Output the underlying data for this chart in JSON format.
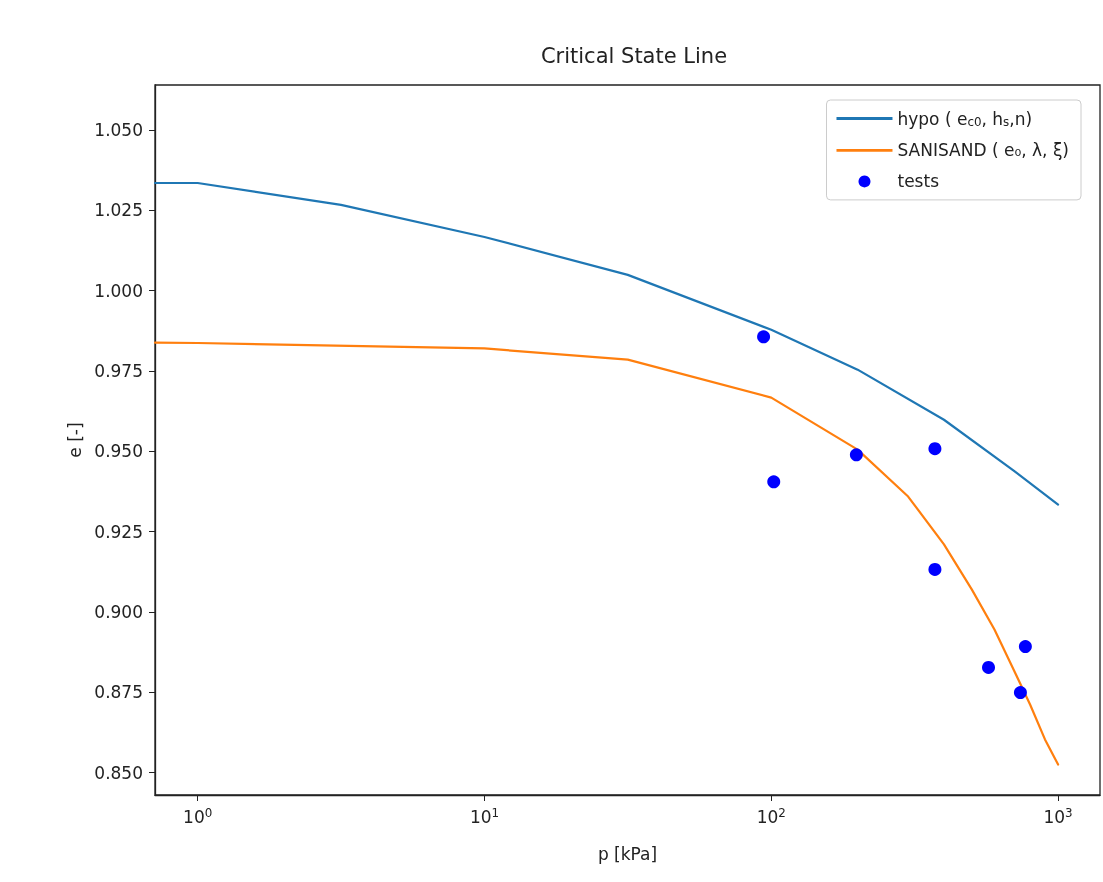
{
  "chart_data": {
    "type": "line",
    "title": "Critical State Line",
    "xlabel": "p [kPa]",
    "ylabel": "e [-]",
    "log": "x",
    "xlim": [
      0.71,
      1400
    ],
    "ylim": [
      0.843,
      1.064
    ],
    "xticks": [
      {
        "value": 1,
        "label": "10$^{0}$"
      },
      {
        "value": 10,
        "label": "10$^{1}$"
      },
      {
        "value": 100,
        "label": "10$^{2}$"
      },
      {
        "value": 1000,
        "label": "10$^{3}$"
      }
    ],
    "yticks": [
      {
        "value": 0.85,
        "label": "0.850"
      },
      0.875,
      {
        "value": 0.9,
        "label": "0.900"
      },
      0.925,
      {
        "value": 0.95,
        "label": "0.950"
      },
      0.975,
      {
        "value": 1,
        "label": "1.000"
      },
      1.025,
      {
        "value": 1.05,
        "label": "1.050"
      }
    ],
    "grid": false,
    "legend": "top right",
    "series": [
      {
        "name": "hypo ( e$_{c0}$, h$_{s}$,n)",
        "color": "#1f77b4",
        "marker": "none",
        "x": [
          0.71,
          1,
          3.16,
          10,
          31.6,
          100,
          200,
          400,
          700,
          1000
        ],
        "values": [
          1.0335,
          1.0335,
          1.0267,
          1.0167,
          1.0049,
          0.9878,
          0.9754,
          0.9598,
          0.944,
          0.9334
        ]
      },
      {
        "name": "SANISAND ( e₀, λ, ξ)",
        "color": "#ff7f0e",
        "marker": "none",
        "x": [
          0.71,
          1,
          10,
          31.6,
          100,
          200,
          300,
          400,
          500,
          600,
          700,
          800,
          900,
          1000
        ],
        "values": [
          0.9838,
          0.9837,
          0.982,
          0.9785,
          0.9667,
          0.9505,
          0.9359,
          0.921,
          0.907,
          0.8945,
          0.882,
          0.871,
          0.8603,
          0.8525
        ]
      },
      {
        "name": "tests",
        "color": "#0000ff",
        "type": "scatter",
        "marker": "circle",
        "x": [
          94,
          102,
          198,
          372,
          372,
          572,
          739,
          769
        ],
        "values": [
          0.9856,
          0.9405,
          0.9489,
          0.9508,
          0.9132,
          0.8827,
          0.8749,
          0.8892
        ]
      }
    ]
  }
}
